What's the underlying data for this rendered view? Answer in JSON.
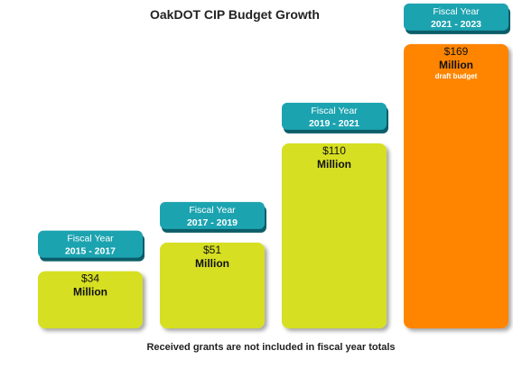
{
  "chart_data": {
    "type": "bar",
    "title": "OakDOT CIP Budget Growth",
    "footnote": "Received grants are not included in fiscal year totals",
    "categories": [
      {
        "line1": "Fiscal Year",
        "line2": "2015 - 2017"
      },
      {
        "line1": "Fiscal Year",
        "line2": "2017 - 2019"
      },
      {
        "line1": "Fiscal Year",
        "line2": "2019 - 2021"
      },
      {
        "line1": "Fiscal Year",
        "line2": "2021 - 2023"
      }
    ],
    "values": [
      34,
      51,
      110,
      169
    ],
    "value_labels": [
      "$34",
      "$51",
      "$110",
      "$169"
    ],
    "unit_label": "Million",
    "notes": [
      "",
      "",
      "",
      "draft budget"
    ],
    "colors": {
      "bar": "#d6df22",
      "highlight_bar": "#ff8500",
      "label_box": "#1ca3b0",
      "label_box_shadow": "#0b5d68"
    },
    "highlight_index": 3,
    "grid": false,
    "legend": "none"
  }
}
